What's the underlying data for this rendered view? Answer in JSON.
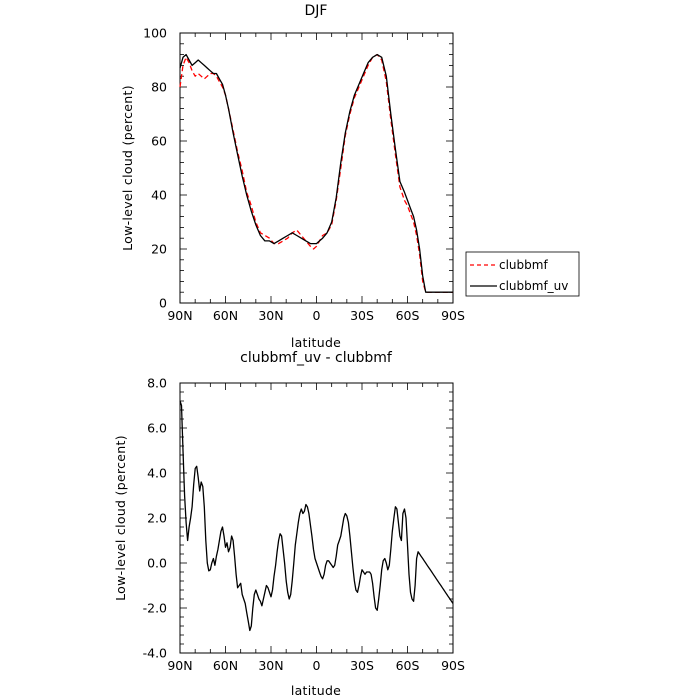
{
  "chart_data": [
    {
      "type": "line",
      "title": "DJF",
      "xlabel": "latitude",
      "ylabel": "Low-level cloud (percent)",
      "xlim": [
        90,
        -90
      ],
      "ylim": [
        0,
        100
      ],
      "xticks": [
        90,
        60,
        30,
        0,
        -30,
        -60,
        -90
      ],
      "xtick_labels": [
        "90N",
        "60N",
        "30N",
        "0",
        "30S",
        "60S",
        "90S"
      ],
      "yticks": [
        0,
        20,
        40,
        60,
        80,
        100
      ],
      "ytick_labels": [
        "0",
        "20",
        "40",
        "60",
        "80",
        "100"
      ],
      "legend_position": "right",
      "series": [
        {
          "name": "clubbmf",
          "color": "#ff0000",
          "dash": "dashed",
          "x": [
            90,
            88,
            86,
            84,
            82,
            80,
            78,
            76,
            74,
            72,
            70,
            68,
            66,
            64,
            62,
            60,
            58,
            55,
            52,
            49,
            46,
            43,
            40,
            37,
            34,
            31,
            28,
            25,
            22,
            19,
            16,
            13,
            10,
            7,
            4,
            2,
            0,
            -2,
            -4,
            -7,
            -10,
            -13,
            -16,
            -19,
            -22,
            -25,
            -28,
            -31,
            -34,
            -37,
            -40,
            -43,
            -46,
            -49,
            -52,
            -55,
            -58,
            -60,
            -62,
            -64,
            -66,
            -68,
            -70,
            -72,
            -74,
            -76,
            -78,
            -80,
            -82,
            -84,
            -86,
            -88,
            -90
          ],
          "y": [
            80,
            88,
            91,
            89,
            86,
            84,
            85,
            84,
            83,
            84,
            85,
            85,
            84,
            82,
            80,
            77,
            72,
            64,
            56,
            49,
            41,
            36,
            30,
            26,
            25,
            24,
            22,
            22,
            23,
            24,
            26,
            27,
            25,
            23,
            21,
            20,
            21,
            23,
            25,
            26,
            29,
            38,
            50,
            62,
            70,
            76,
            80,
            84,
            88,
            91,
            92,
            90,
            82,
            68,
            55,
            43,
            38,
            36,
            33,
            30,
            25,
            18,
            8,
            4,
            4,
            4,
            4,
            4,
            4,
            4,
            4,
            4,
            4
          ],
          "x_note": "",
          "display": "solid line"
        },
        {
          "name": "clubbmf_uv",
          "color": "#000000",
          "dash": "solid",
          "x": [
            90,
            88,
            86,
            84,
            82,
            80,
            78,
            76,
            74,
            72,
            70,
            68,
            66,
            64,
            62,
            60,
            58,
            55,
            52,
            49,
            46,
            43,
            40,
            37,
            34,
            31,
            28,
            25,
            22,
            19,
            16,
            13,
            10,
            7,
            4,
            2,
            0,
            -2,
            -4,
            -7,
            -10,
            -13,
            -16,
            -19,
            -22,
            -25,
            -28,
            -31,
            -34,
            -37,
            -40,
            -43,
            -46,
            -49,
            -52,
            -55,
            -58,
            -60,
            -62,
            -64,
            -66,
            -68,
            -70,
            -72,
            -74,
            -76,
            -78,
            -80,
            -82,
            -84,
            -86,
            -88,
            -90
          ],
          "y": [
            87,
            91,
            92,
            90,
            88,
            89,
            90,
            89,
            88,
            87,
            86,
            85,
            85,
            83,
            81,
            77,
            72,
            63,
            55,
            47,
            40,
            34,
            29,
            25,
            23,
            23,
            22,
            23,
            24,
            25,
            26,
            25,
            24,
            23,
            22,
            22,
            22,
            23,
            24,
            26,
            30,
            39,
            52,
            63,
            71,
            77,
            81,
            85,
            89,
            91,
            92,
            91,
            84,
            70,
            57,
            45,
            41,
            38,
            35,
            32,
            27,
            20,
            10,
            4,
            4,
            4,
            4,
            4,
            4,
            4,
            4,
            4,
            4
          ]
        }
      ]
    },
    {
      "type": "line",
      "title": "clubbmf_uv - clubbmf",
      "xlabel": "latitude",
      "ylabel": "Low-level cloud (percent)",
      "xlim": [
        90,
        -90
      ],
      "ylim": [
        -4,
        8
      ],
      "xticks": [
        90,
        60,
        30,
        0,
        -30,
        -60,
        -90
      ],
      "xtick_labels": [
        "90N",
        "60N",
        "30N",
        "0",
        "30S",
        "60S",
        "90S"
      ],
      "yticks": [
        -4,
        -2,
        0,
        2,
        4,
        6,
        8
      ],
      "ytick_labels": [
        "-4.0",
        "-2.0",
        "0.0",
        "2.0",
        "4.0",
        "6.0",
        "8.0"
      ],
      "series": [
        {
          "color": "#000000",
          "dash": "solid",
          "x": [
            90,
            89,
            88,
            87,
            86,
            85,
            84,
            83,
            82,
            81,
            80,
            79,
            78,
            77,
            76,
            75,
            74,
            73,
            72,
            71,
            70,
            69,
            68,
            67,
            66,
            65,
            64,
            63,
            62,
            61,
            60,
            59,
            58,
            57,
            56,
            55,
            54,
            53,
            52,
            51,
            50,
            49,
            48,
            47,
            46,
            45,
            44,
            43,
            42,
            41,
            40,
            39,
            38,
            37,
            36,
            35,
            34,
            33,
            32,
            31,
            30,
            29,
            28,
            27,
            26,
            25,
            24,
            23,
            22,
            21,
            20,
            19,
            18,
            17,
            16,
            15,
            14,
            13,
            12,
            11,
            10,
            9,
            8,
            7,
            6,
            5,
            4,
            3,
            2,
            1,
            0,
            -1,
            -2,
            -3,
            -4,
            -5,
            -6,
            -7,
            -8,
            -9,
            -10,
            -11,
            -12,
            -13,
            -14,
            -15,
            -16,
            -17,
            -18,
            -19,
            -20,
            -21,
            -22,
            -23,
            -24,
            -25,
            -26,
            -27,
            -28,
            -29,
            -30,
            -31,
            -32,
            -33,
            -34,
            -35,
            -36,
            -37,
            -38,
            -39,
            -40,
            -41,
            -42,
            -43,
            -44,
            -45,
            -46,
            -47,
            -48,
            -49,
            -50,
            -51,
            -52,
            -53,
            -54,
            -55,
            -56,
            -57,
            -58,
            -59,
            -60,
            -61,
            -62,
            -63,
            -64,
            -65,
            -66,
            -67,
            -68,
            -69,
            -70,
            -71,
            -72,
            -73,
            -74,
            -75,
            -76,
            -77,
            -78,
            -79,
            -80,
            -81,
            -82,
            -83,
            -84,
            -85,
            -86,
            -87,
            -88,
            -89,
            -90
          ],
          "y": [
            7.2,
            7.0,
            5.0,
            3.0,
            1.8,
            1.0,
            1.6,
            2.0,
            2.5,
            3.5,
            4.2,
            4.3,
            3.8,
            3.2,
            3.6,
            3.4,
            2.5,
            1.0,
            0.0,
            -0.35,
            -0.3,
            0.0,
            0.2,
            -0.1,
            0.3,
            0.6,
            1.0,
            1.4,
            1.6,
            1.2,
            0.7,
            0.9,
            0.5,
            0.7,
            1.2,
            1.0,
            0.3,
            -0.5,
            -1.1,
            -1.0,
            -0.9,
            -1.4,
            -1.6,
            -1.8,
            -2.2,
            -2.6,
            -3.0,
            -2.8,
            -2.0,
            -1.4,
            -1.2,
            -1.4,
            -1.6,
            -1.7,
            -1.9,
            -1.6,
            -1.3,
            -1.0,
            -1.1,
            -1.3,
            -1.5,
            -1.2,
            -0.6,
            -0.1,
            0.5,
            1.0,
            1.3,
            1.2,
            0.6,
            0.0,
            -0.8,
            -1.3,
            -1.6,
            -1.4,
            -0.8,
            0.0,
            0.8,
            1.3,
            1.8,
            2.2,
            2.4,
            2.2,
            2.3,
            2.6,
            2.5,
            2.2,
            1.7,
            1.2,
            0.6,
            0.2,
            0.0,
            -0.2,
            -0.4,
            -0.6,
            -0.7,
            -0.5,
            -0.1,
            0.1,
            0.1,
            0.0,
            -0.1,
            -0.2,
            -0.1,
            0.3,
            0.8,
            1.0,
            1.2,
            1.6,
            2.0,
            2.2,
            2.1,
            1.8,
            1.2,
            0.5,
            -0.2,
            -0.8,
            -1.2,
            -1.3,
            -1.0,
            -0.6,
            -0.3,
            -0.4,
            -0.5,
            -0.4,
            -0.4,
            -0.4,
            -0.5,
            -0.9,
            -1.5,
            -2.0,
            -2.1,
            -1.6,
            -1.0,
            -0.3,
            0.1,
            0.2,
            0.0,
            -0.3,
            -0.1,
            0.6,
            1.4,
            2.0,
            2.5,
            2.4,
            1.8,
            1.2,
            1.0,
            2.2,
            2.4,
            2.0,
            0.8,
            -0.5,
            -1.3,
            -1.6,
            -1.7,
            -1.0,
            0.2,
            0.5,
            0.4,
            0.3,
            0.2,
            0.1,
            0.0,
            -0.1,
            -0.2,
            -0.3,
            -0.4,
            -0.5,
            -0.6,
            -0.7,
            -0.8,
            -0.9,
            -1.0,
            -1.1,
            -1.2,
            -1.3,
            -1.4,
            -1.5,
            -1.6,
            -1.7,
            -1.8
          ]
        }
      ]
    }
  ]
}
